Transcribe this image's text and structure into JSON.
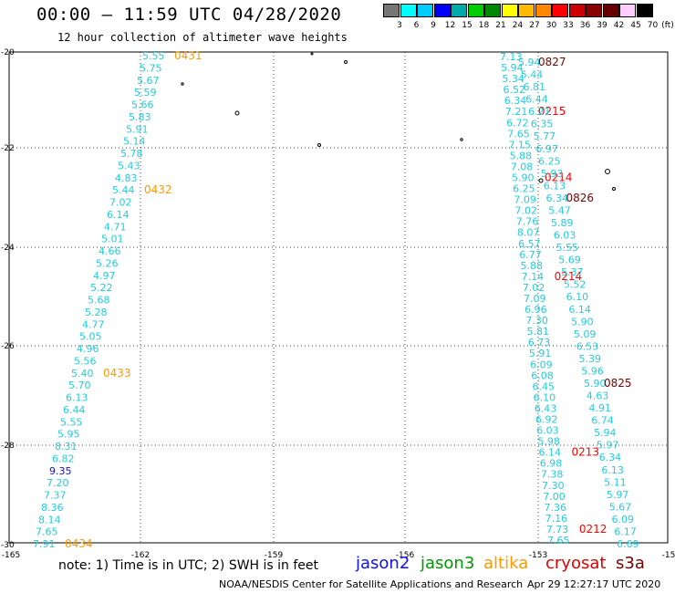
{
  "title": "00:00 – 11:59 UTC 04/28/2020",
  "subtitle": "12 hour collection of altimeter wave heights",
  "legend": {
    "unit": "(ft)",
    "levels": [
      "3",
      "6",
      "9",
      "12",
      "15",
      "18",
      "21",
      "24",
      "27",
      "30",
      "33",
      "36",
      "39",
      "42",
      "45",
      "70"
    ],
    "colors": [
      "#777777",
      "#00ffff",
      "#00ccff",
      "#0000ff",
      "#00aaaa",
      "#00cc00",
      "#008800",
      "#ffff00",
      "#ffbb00",
      "#ff8800",
      "#ff0000",
      "#cc0000",
      "#880000",
      "#660000",
      "#ffccff",
      "#000000"
    ]
  },
  "axes": {
    "lon_ticks": [
      "-165",
      "-162",
      "-159",
      "-156",
      "-153",
      "-15"
    ],
    "lat_ticks": [
      "-20",
      "-22",
      "-24",
      "-26",
      "-28",
      "-30"
    ]
  },
  "note": "note:  1) Time is in UTC;  2) SWH is in feet",
  "satellites": [
    {
      "name": "jason2",
      "color": "#1010ff"
    },
    {
      "name": "jason3",
      "color": "#009900"
    },
    {
      "name": "altika",
      "color": "#ff9900"
    },
    {
      "name": "cryosat",
      "color": "#dd0000"
    },
    {
      "name": "s3a",
      "color": "#770000"
    }
  ],
  "credit": "NOAA/NESDIS Center for Satellite Applications and Research",
  "timestamp": "Apr 29 12:27:17 UTC 2020",
  "tracks": [
    {
      "name": "altika-west",
      "values": [
        "5.55",
        "5.75",
        "5.67",
        "5.59",
        "5.66",
        "5.83",
        "5.91",
        "5.14",
        "5.78",
        "5.43",
        "4.83",
        "5.44",
        "7.02",
        "6.14",
        "4.71",
        "5.01",
        "4.66",
        "5.26",
        "4.97",
        "5.22",
        "5.68",
        "5.28",
        "4.77",
        "5.05",
        "4.96",
        "5.56",
        "5.40",
        "5.70",
        "6.13",
        "6.44",
        "5.55",
        "5.95",
        "8.31",
        "6.82",
        "9.35",
        "7.20",
        "7.37",
        "8.36",
        "8.14",
        "7.65",
        "7.91"
      ],
      "colors": [
        "c",
        "c",
        "c",
        "c",
        "c",
        "c",
        "c",
        "c",
        "c",
        "c",
        "c",
        "c",
        "c",
        "c",
        "c",
        "c",
        "c",
        "c",
        "c",
        "c",
        "c",
        "c",
        "c",
        "c",
        "c",
        "c",
        "c",
        "c",
        "c",
        "c",
        "c",
        "c",
        "c",
        "c",
        "b",
        "c",
        "c",
        "c",
        "c",
        "c",
        "c"
      ],
      "times": [
        {
          "label": "0431",
          "idx": 0
        },
        {
          "label": "0432",
          "idx": 11
        },
        {
          "label": "0433",
          "idx": 26
        },
        {
          "label": "0434",
          "idx": 40
        }
      ]
    },
    {
      "name": "east-a",
      "values": [
        "7.13",
        "5.94",
        "5.34",
        "6.52",
        "6.34",
        "7.21",
        "6.72",
        "7.65",
        "7.15",
        "5.88",
        "7.08",
        "5.90",
        "6.25",
        "7.09",
        "7.02",
        "7.76",
        "8.07",
        "6.57",
        "6.77",
        "5.88",
        "7.14",
        "7.02",
        "7.09",
        "6.96",
        "7.30",
        "5.81",
        "6.73",
        "5.91",
        "6.09",
        "6.08",
        "6.45",
        "6.10",
        "6.43",
        "6.92",
        "6.03",
        "5.98",
        "6.14",
        "6.98",
        "7.38",
        "7.30",
        "7.00",
        "7.36",
        "7.16",
        "7.73",
        "7.65"
      ],
      "times": [
        {
          "label": "0215",
          "idx": 5,
          "color": "#ff0000"
        },
        {
          "label": "0214",
          "idx": 11,
          "color": "#ff0000"
        },
        {
          "label": "0214",
          "idx": 20,
          "color": "#ff0000"
        },
        {
          "label": "0213",
          "idx": 36,
          "color": "#ff0000"
        },
        {
          "label": "0212",
          "idx": 43,
          "color": "#ff0000"
        }
      ]
    },
    {
      "name": "east-b",
      "values": [
        "5.94",
        "5.44",
        "6.81",
        "6.44",
        "6.21",
        "6.35",
        "5.77",
        "6.97",
        "6.25",
        "5.93",
        "6.13",
        "6.34",
        "5.47",
        "5.89",
        "6.03",
        "5.55",
        "5.69",
        "5.37",
        "5.52",
        "6.10",
        "6.14",
        "5.90",
        "5.09",
        "6.53",
        "5.39",
        "5.96",
        "5.90",
        "4.63",
        "4.91",
        "6.74",
        "5.94",
        "5.97",
        "6.34",
        "6.13",
        "5.11",
        "5.97",
        "5.67",
        "6.09",
        "6.17",
        "6.69"
      ],
      "times": [
        {
          "label": "0827",
          "idx": 0,
          "color": "#770000"
        },
        {
          "label": "0826",
          "idx": 11,
          "color": "#770000"
        },
        {
          "label": "0825",
          "idx": 26,
          "color": "#770000"
        }
      ]
    }
  ]
}
